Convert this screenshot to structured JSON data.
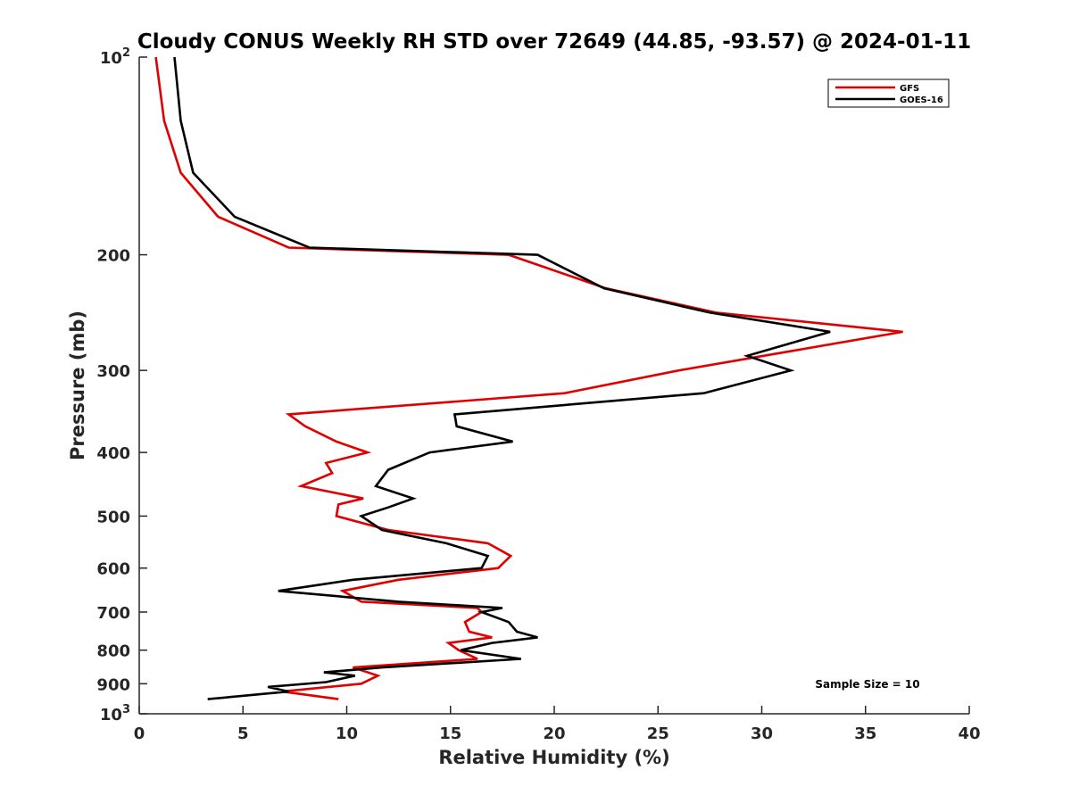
{
  "chart_data": {
    "type": "line",
    "title": "Cloudy CONUS Weekly RH STD over 72649 (44.85, -93.57) @ 2024-01-11",
    "xlabel": "Relative Humidity (%)",
    "ylabel": "Pressure (mb)",
    "xlim": [
      0,
      40
    ],
    "ylim": [
      100,
      1000
    ],
    "y_scale": "log",
    "y_reversed": true,
    "grid": false,
    "legend_position": "top-right",
    "x_ticks": [
      "0",
      "5",
      "10",
      "15",
      "20",
      "25",
      "30",
      "35",
      "40"
    ],
    "x_tick_values": [
      0,
      5,
      10,
      15,
      20,
      25,
      30,
      35,
      40
    ],
    "y_ticks": [
      {
        "value": 100,
        "base": "10",
        "exp": "2",
        "text": ""
      },
      {
        "value": 200,
        "base": "",
        "exp": "",
        "text": "200"
      },
      {
        "value": 300,
        "base": "",
        "exp": "",
        "text": "300"
      },
      {
        "value": 400,
        "base": "",
        "exp": "",
        "text": "400"
      },
      {
        "value": 500,
        "base": "",
        "exp": "",
        "text": "500"
      },
      {
        "value": 600,
        "base": "",
        "exp": "",
        "text": "600"
      },
      {
        "value": 700,
        "base": "",
        "exp": "",
        "text": "700"
      },
      {
        "value": 800,
        "base": "",
        "exp": "",
        "text": "800"
      },
      {
        "value": 900,
        "base": "",
        "exp": "",
        "text": "900"
      },
      {
        "value": 1000,
        "base": "10",
        "exp": "3",
        "text": ""
      }
    ],
    "annotation": "Sample Size = 10",
    "series": [
      {
        "name": "GFS",
        "color": "#e00000",
        "points": [
          [
            0.8,
            100
          ],
          [
            1.2,
            125
          ],
          [
            2.0,
            150
          ],
          [
            3.8,
            175
          ],
          [
            7.2,
            195
          ],
          [
            17.8,
            200
          ],
          [
            22.5,
            225
          ],
          [
            27.8,
            245
          ],
          [
            36.8,
            262
          ],
          [
            26.0,
            300
          ],
          [
            20.5,
            325
          ],
          [
            7.2,
            350
          ],
          [
            8.0,
            365
          ],
          [
            9.5,
            385
          ],
          [
            11.0,
            400
          ],
          [
            9.0,
            415
          ],
          [
            9.3,
            430
          ],
          [
            7.8,
            450
          ],
          [
            10.8,
            470
          ],
          [
            9.6,
            480
          ],
          [
            9.5,
            500
          ],
          [
            12.0,
            525
          ],
          [
            16.8,
            550
          ],
          [
            17.9,
            575
          ],
          [
            17.3,
            600
          ],
          [
            12.5,
            625
          ],
          [
            9.8,
            650
          ],
          [
            10.7,
            675
          ],
          [
            16.3,
            690
          ],
          [
            16.5,
            700
          ],
          [
            15.7,
            725
          ],
          [
            15.9,
            750
          ],
          [
            17.0,
            765
          ],
          [
            14.9,
            780
          ],
          [
            15.4,
            800
          ],
          [
            16.3,
            825
          ],
          [
            10.3,
            850
          ],
          [
            11.5,
            875
          ],
          [
            10.7,
            900
          ],
          [
            6.9,
            925
          ],
          [
            9.6,
            950
          ]
        ]
      },
      {
        "name": "GOES-16",
        "color": "#000000",
        "points": [
          [
            1.7,
            100
          ],
          [
            2.0,
            125
          ],
          [
            2.6,
            150
          ],
          [
            4.6,
            175
          ],
          [
            8.2,
            195
          ],
          [
            19.2,
            200
          ],
          [
            22.4,
            225
          ],
          [
            27.5,
            245
          ],
          [
            33.3,
            262
          ],
          [
            29.3,
            285
          ],
          [
            31.4,
            300
          ],
          [
            27.2,
            325
          ],
          [
            15.2,
            350
          ],
          [
            15.3,
            365
          ],
          [
            18.0,
            385
          ],
          [
            14.0,
            400
          ],
          [
            12.0,
            425
          ],
          [
            11.4,
            450
          ],
          [
            13.2,
            470
          ],
          [
            12.0,
            485
          ],
          [
            10.7,
            500
          ],
          [
            11.7,
            525
          ],
          [
            14.8,
            550
          ],
          [
            16.8,
            575
          ],
          [
            16.5,
            600
          ],
          [
            10.3,
            625
          ],
          [
            6.7,
            650
          ],
          [
            12.5,
            675
          ],
          [
            17.5,
            690
          ],
          [
            16.5,
            700
          ],
          [
            17.8,
            725
          ],
          [
            18.2,
            750
          ],
          [
            19.2,
            765
          ],
          [
            17.0,
            780
          ],
          [
            15.5,
            800
          ],
          [
            18.4,
            825
          ],
          [
            11.7,
            850
          ],
          [
            8.9,
            865
          ],
          [
            10.4,
            875
          ],
          [
            9.0,
            895
          ],
          [
            6.2,
            910
          ],
          [
            7.2,
            925
          ],
          [
            3.3,
            950
          ]
        ]
      }
    ]
  }
}
